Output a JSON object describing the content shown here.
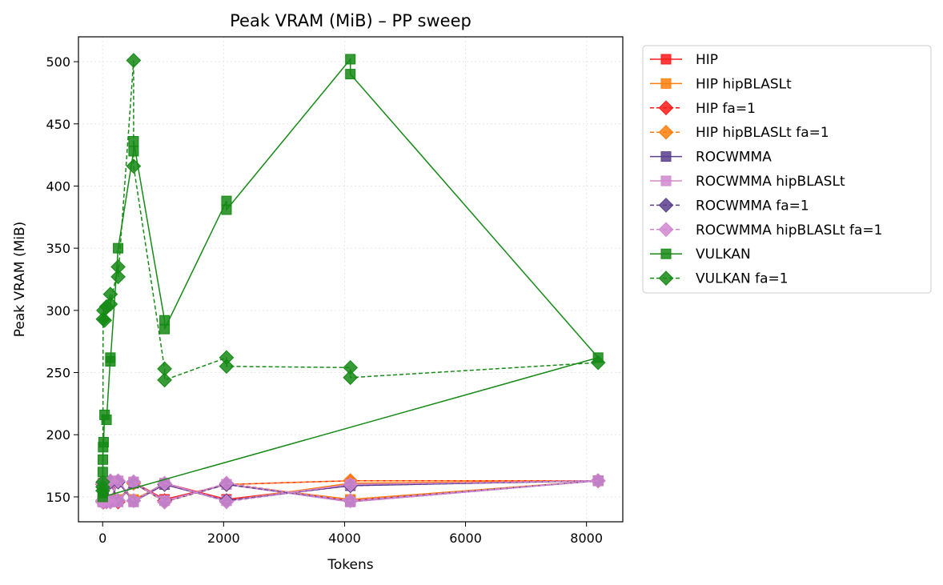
{
  "chart_data": {
    "type": "line",
    "title": "Peak VRAM (MiB) – PP sweep",
    "xlabel": "Tokens",
    "ylabel": "Peak VRAM (MiB)",
    "xlim": [
      -400,
      8600
    ],
    "ylim": [
      130,
      520
    ],
    "xticks": [
      0,
      2000,
      4000,
      6000,
      8000
    ],
    "xtick_labels": [
      "0",
      "2000",
      "4000",
      "6000",
      "8000"
    ],
    "yticks": [
      150,
      200,
      250,
      300,
      350,
      400,
      450,
      500
    ],
    "ytick_labels": [
      "150",
      "200",
      "250",
      "300",
      "350",
      "400",
      "450",
      "500"
    ],
    "grid": true,
    "legend_placement": "outside-right-top",
    "series": [
      {
        "name": "HIP",
        "color": "#ff1a1a",
        "marker": "square",
        "dash": "solid",
        "points": [
          [
            1,
            147
          ],
          [
            2,
            160
          ],
          [
            4,
            148
          ],
          [
            8,
            161
          ],
          [
            16,
            147
          ],
          [
            32,
            160
          ],
          [
            64,
            148
          ],
          [
            128,
            161
          ],
          [
            256,
            147
          ],
          [
            512,
            162
          ],
          [
            1024,
            148
          ],
          [
            2048,
            160
          ],
          [
            4096,
            147
          ],
          [
            8192,
            163
          ],
          [
            4096,
            160
          ],
          [
            2048,
            148
          ],
          [
            1024,
            161
          ],
          [
            512,
            147
          ],
          [
            256,
            162
          ],
          [
            128,
            148
          ]
        ]
      },
      {
        "name": "HIP hipBLASLt",
        "color": "#ff7f0e",
        "marker": "square",
        "dash": "solid",
        "points": [
          [
            1,
            148
          ],
          [
            2,
            161
          ],
          [
            4,
            147
          ],
          [
            8,
            160
          ],
          [
            16,
            148
          ],
          [
            32,
            161
          ],
          [
            64,
            147
          ],
          [
            128,
            162
          ],
          [
            256,
            148
          ],
          [
            512,
            161
          ],
          [
            1024,
            147
          ],
          [
            2048,
            160
          ],
          [
            4096,
            148
          ],
          [
            8192,
            163
          ],
          [
            4096,
            161
          ],
          [
            2048,
            147
          ],
          [
            1024,
            160
          ],
          [
            512,
            148
          ],
          [
            256,
            162
          ],
          [
            128,
            147
          ]
        ]
      },
      {
        "name": "HIP fa=1",
        "color": "#ff1a1a",
        "marker": "diamond",
        "dash": "dashed",
        "points": [
          [
            1,
            146
          ],
          [
            2,
            160
          ],
          [
            4,
            147
          ],
          [
            8,
            161
          ],
          [
            16,
            146
          ],
          [
            32,
            160
          ],
          [
            64,
            147
          ],
          [
            128,
            162
          ],
          [
            256,
            146
          ],
          [
            512,
            161
          ],
          [
            1024,
            147
          ],
          [
            2048,
            160
          ],
          [
            4096,
            163
          ],
          [
            8192,
            163
          ]
        ]
      },
      {
        "name": "HIP hipBLASLt fa=1",
        "color": "#ff7f0e",
        "marker": "diamond",
        "dash": "dashed",
        "points": [
          [
            1,
            147
          ],
          [
            2,
            161
          ],
          [
            4,
            146
          ],
          [
            8,
            160
          ],
          [
            16,
            147
          ],
          [
            32,
            161
          ],
          [
            64,
            146
          ],
          [
            128,
            162
          ],
          [
            256,
            147
          ],
          [
            512,
            161
          ],
          [
            1024,
            146
          ],
          [
            2048,
            160
          ],
          [
            4096,
            163
          ],
          [
            8192,
            163
          ]
        ]
      },
      {
        "name": "ROCWMMA",
        "color": "#5b3f8c",
        "marker": "square",
        "dash": "solid",
        "points": [
          [
            1,
            146
          ],
          [
            2,
            160
          ],
          [
            4,
            147
          ],
          [
            8,
            161
          ],
          [
            16,
            146
          ],
          [
            32,
            160
          ],
          [
            64,
            147
          ],
          [
            128,
            162
          ],
          [
            256,
            146
          ],
          [
            512,
            161
          ],
          [
            1024,
            147
          ],
          [
            2048,
            160
          ],
          [
            4096,
            146
          ],
          [
            8192,
            163
          ],
          [
            4096,
            159
          ],
          [
            2048,
            147
          ],
          [
            1024,
            160
          ],
          [
            512,
            146
          ],
          [
            256,
            162
          ],
          [
            128,
            147
          ]
        ]
      },
      {
        "name": "ROCWMMA hipBLASLt",
        "color": "#d088d0",
        "marker": "square",
        "dash": "solid",
        "points": [
          [
            1,
            146
          ],
          [
            2,
            160
          ],
          [
            4,
            147
          ],
          [
            8,
            161
          ],
          [
            16,
            146
          ],
          [
            32,
            161
          ],
          [
            64,
            147
          ],
          [
            128,
            162
          ],
          [
            256,
            146
          ],
          [
            512,
            162
          ],
          [
            1024,
            147
          ],
          [
            2048,
            160
          ],
          [
            4096,
            146
          ],
          [
            8192,
            163
          ],
          [
            4096,
            160
          ],
          [
            2048,
            147
          ],
          [
            1024,
            161
          ],
          [
            512,
            146
          ],
          [
            256,
            163
          ],
          [
            128,
            147
          ]
        ]
      },
      {
        "name": "ROCWMMA fa=1",
        "color": "#5b3f8c",
        "marker": "diamond",
        "dash": "dashed",
        "points": [
          [
            1,
            147
          ],
          [
            2,
            160
          ],
          [
            4,
            146
          ],
          [
            8,
            161
          ],
          [
            16,
            147
          ],
          [
            32,
            160
          ],
          [
            64,
            146
          ],
          [
            128,
            162
          ],
          [
            256,
            147
          ],
          [
            512,
            162
          ],
          [
            1024,
            146
          ],
          [
            2048,
            160
          ],
          [
            4096,
            147
          ],
          [
            8192,
            163
          ],
          [
            4096,
            159
          ],
          [
            2048,
            147
          ],
          [
            1024,
            160
          ],
          [
            512,
            147
          ],
          [
            256,
            162
          ],
          [
            128,
            146
          ]
        ]
      },
      {
        "name": "ROCWMMA hipBLASLt fa=1",
        "color": "#d088d0",
        "marker": "diamond",
        "dash": "dashed",
        "points": [
          [
            1,
            147
          ],
          [
            2,
            161
          ],
          [
            4,
            146
          ],
          [
            8,
            160
          ],
          [
            16,
            147
          ],
          [
            32,
            161
          ],
          [
            64,
            146
          ],
          [
            128,
            163
          ],
          [
            256,
            147
          ],
          [
            512,
            162
          ],
          [
            1024,
            146
          ],
          [
            2048,
            161
          ],
          [
            4096,
            147
          ],
          [
            8192,
            163
          ],
          [
            4096,
            160
          ],
          [
            2048,
            146
          ],
          [
            1024,
            161
          ],
          [
            512,
            147
          ],
          [
            256,
            163
          ],
          [
            128,
            146
          ]
        ]
      },
      {
        "name": "VULKAN",
        "color": "#158a15",
        "marker": "square",
        "dash": "solid",
        "points": [
          [
            1,
            153
          ],
          [
            2,
            170
          ],
          [
            4,
            180
          ],
          [
            8,
            190
          ],
          [
            16,
            194
          ],
          [
            32,
            216
          ],
          [
            64,
            212
          ],
          [
            128,
            262
          ],
          [
            128,
            259
          ],
          [
            256,
            350
          ],
          [
            512,
            428
          ],
          [
            512,
            436
          ],
          [
            1024,
            292
          ],
          [
            1024,
            285
          ],
          [
            2048,
            388
          ],
          [
            2048,
            381
          ],
          [
            4096,
            502
          ],
          [
            4096,
            490
          ],
          [
            8192,
            262
          ],
          [
            1,
            150
          ]
        ]
      },
      {
        "name": "VULKAN fa=1",
        "color": "#158a15",
        "marker": "diamond",
        "dash": "dashed",
        "points": [
          [
            1,
            158
          ],
          [
            2,
            155
          ],
          [
            4,
            162
          ],
          [
            8,
            293
          ],
          [
            16,
            300
          ],
          [
            32,
            292
          ],
          [
            64,
            303
          ],
          [
            128,
            313
          ],
          [
            128,
            305
          ],
          [
            256,
            335
          ],
          [
            256,
            327
          ],
          [
            512,
            501
          ],
          [
            512,
            416
          ],
          [
            1024,
            253
          ],
          [
            1024,
            244
          ],
          [
            2048,
            262
          ],
          [
            2048,
            255
          ],
          [
            4096,
            254
          ],
          [
            4096,
            246
          ],
          [
            8192,
            258
          ]
        ]
      }
    ]
  }
}
